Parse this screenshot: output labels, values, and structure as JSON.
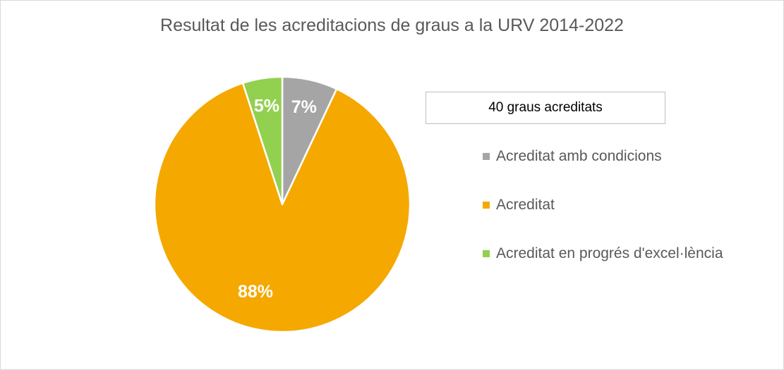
{
  "chart_data": {
    "type": "pie",
    "title": "Resultat de les acreditacions de graus a la URV 2014-2022",
    "annotation": "40 graus acreditats",
    "slices": [
      {
        "label": "Acreditat amb condicions",
        "value": 7,
        "data_label": "7%",
        "color": "#a5a5a5"
      },
      {
        "label": "Acreditat",
        "value": 88,
        "data_label": "88%",
        "color": "#f5a800"
      },
      {
        "label": "Acreditat en progrés d'excel·lència",
        "value": 5,
        "data_label": "5%",
        "color": "#92d050"
      }
    ],
    "legend_position": "right"
  }
}
